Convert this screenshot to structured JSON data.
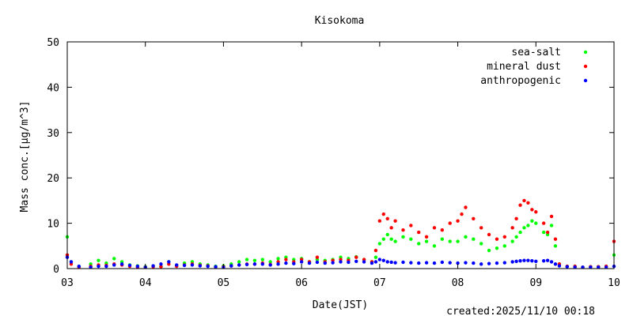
{
  "chart_data": {
    "type": "scatter",
    "title": "Kisokoma",
    "xlabel": "Date(JST)",
    "ylabel_main": "Mass conc.[",
    "ylabel_unit": "μg/m^3]",
    "x_ticks": [
      "03",
      "04",
      "05",
      "06",
      "07",
      "08",
      "09",
      "10"
    ],
    "xlim": [
      "03",
      "10"
    ],
    "ylim": [
      0,
      50
    ],
    "y_ticks": [
      0,
      10,
      20,
      30,
      40,
      50
    ],
    "grid": false,
    "legend_position": "top-right",
    "created": "created:2025/11/10 00:18",
    "series": [
      {
        "name": "sea-salt",
        "color": "#00ff00",
        "x": [
          3.0,
          3.05,
          3.15,
          3.3,
          3.4,
          3.5,
          3.6,
          3.7,
          3.8,
          3.9,
          4.0,
          4.1,
          4.2,
          4.3,
          4.4,
          4.5,
          4.6,
          4.7,
          4.8,
          4.9,
          5.0,
          5.1,
          5.2,
          5.3,
          5.4,
          5.5,
          5.6,
          5.7,
          5.8,
          5.9,
          6.0,
          6.1,
          6.2,
          6.3,
          6.4,
          6.5,
          6.6,
          6.7,
          6.8,
          6.9,
          6.95,
          7.0,
          7.05,
          7.1,
          7.15,
          7.2,
          7.3,
          7.4,
          7.5,
          7.6,
          7.7,
          7.8,
          7.9,
          8.0,
          8.1,
          8.2,
          8.3,
          8.4,
          8.5,
          8.6,
          8.7,
          8.75,
          8.8,
          8.85,
          8.9,
          8.95,
          9.0,
          9.1,
          9.15,
          9.2,
          9.25,
          9.3,
          9.4,
          9.5,
          9.6,
          9.7,
          9.8,
          9.9,
          10.0
        ],
        "y": [
          7.0,
          1.5,
          0.5,
          1.0,
          1.8,
          1.2,
          2.2,
          1.5,
          0.8,
          0.6,
          0.4,
          0.6,
          0.5,
          1.5,
          0.7,
          1.2,
          1.5,
          1.0,
          0.8,
          0.5,
          0.6,
          1.0,
          1.5,
          2.0,
          1.8,
          2.0,
          1.5,
          2.2,
          2.5,
          2.0,
          2.2,
          1.5,
          2.0,
          1.8,
          2.0,
          2.5,
          2.2,
          2.6,
          2.0,
          1.5,
          2.5,
          5.5,
          6.5,
          7.5,
          6.5,
          6.0,
          7.0,
          6.5,
          5.5,
          6.0,
          5.0,
          6.5,
          6.0,
          6.0,
          7.0,
          6.5,
          5.5,
          4.0,
          4.5,
          5.0,
          6.0,
          7.0,
          8.0,
          9.0,
          9.5,
          10.5,
          10.0,
          8.0,
          7.5,
          9.5,
          5.0,
          1.0,
          0.5,
          0.5,
          0.3,
          0.4,
          0.4,
          0.5,
          3.0
        ]
      },
      {
        "name": "mineral dust",
        "color": "#ff0000",
        "x": [
          3.0,
          3.05,
          3.15,
          3.3,
          3.4,
          3.5,
          3.6,
          3.7,
          3.8,
          3.9,
          4.0,
          4.1,
          4.2,
          4.3,
          4.4,
          4.5,
          4.6,
          4.7,
          4.8,
          4.9,
          5.0,
          5.1,
          5.2,
          5.3,
          5.4,
          5.5,
          5.6,
          5.7,
          5.8,
          5.9,
          6.0,
          6.1,
          6.2,
          6.3,
          6.4,
          6.5,
          6.6,
          6.7,
          6.8,
          6.9,
          6.95,
          7.0,
          7.05,
          7.1,
          7.15,
          7.2,
          7.3,
          7.4,
          7.5,
          7.6,
          7.7,
          7.8,
          7.9,
          8.0,
          8.05,
          8.1,
          8.2,
          8.3,
          8.4,
          8.5,
          8.6,
          8.7,
          8.75,
          8.8,
          8.85,
          8.9,
          8.95,
          9.0,
          9.1,
          9.15,
          9.2,
          9.25,
          9.3,
          9.4,
          9.5,
          9.6,
          9.7,
          9.8,
          9.9,
          10.0
        ],
        "y": [
          3.0,
          1.0,
          0.3,
          0.5,
          0.8,
          0.7,
          1.0,
          0.8,
          0.5,
          0.3,
          0.3,
          0.4,
          0.4,
          1.0,
          0.5,
          0.8,
          1.0,
          0.7,
          0.6,
          0.3,
          0.4,
          0.6,
          0.8,
          1.0,
          1.0,
          1.2,
          0.9,
          1.5,
          2.0,
          1.5,
          2.0,
          1.5,
          2.5,
          1.5,
          1.8,
          2.0,
          1.8,
          2.5,
          2.0,
          1.5,
          4.0,
          10.5,
          12.0,
          11.0,
          9.0,
          10.5,
          8.5,
          9.5,
          8.0,
          7.0,
          9.0,
          8.5,
          10.0,
          10.5,
          12.0,
          13.5,
          11.0,
          9.0,
          7.5,
          6.5,
          7.0,
          9.0,
          11.0,
          14.0,
          15.0,
          14.5,
          13.0,
          12.5,
          10.0,
          8.0,
          11.5,
          6.5,
          1.0,
          0.5,
          0.5,
          0.3,
          0.4,
          0.4,
          0.5,
          6.0
        ]
      },
      {
        "name": "anthropogenic",
        "color": "#0000ff",
        "x": [
          3.0,
          3.05,
          3.15,
          3.3,
          3.4,
          3.5,
          3.6,
          3.7,
          3.8,
          3.9,
          4.0,
          4.1,
          4.2,
          4.3,
          4.4,
          4.5,
          4.6,
          4.7,
          4.8,
          4.9,
          5.0,
          5.1,
          5.2,
          5.3,
          5.4,
          5.5,
          5.6,
          5.7,
          5.8,
          5.9,
          6.0,
          6.1,
          6.2,
          6.3,
          6.4,
          6.5,
          6.6,
          6.7,
          6.8,
          6.9,
          6.95,
          7.0,
          7.05,
          7.1,
          7.15,
          7.2,
          7.3,
          7.4,
          7.5,
          7.6,
          7.7,
          7.8,
          7.9,
          8.0,
          8.1,
          8.2,
          8.3,
          8.4,
          8.5,
          8.6,
          8.7,
          8.75,
          8.8,
          8.85,
          8.9,
          8.95,
          9.0,
          9.1,
          9.15,
          9.2,
          9.25,
          9.3,
          9.4,
          9.5,
          9.6,
          9.7,
          9.8,
          9.9,
          10.0
        ],
        "y": [
          2.5,
          1.5,
          0.5,
          0.3,
          0.5,
          0.5,
          0.8,
          1.0,
          0.7,
          0.5,
          0.3,
          0.6,
          1.0,
          1.5,
          0.8,
          0.7,
          0.8,
          0.6,
          0.5,
          0.4,
          0.3,
          0.6,
          0.8,
          0.9,
          1.0,
          1.0,
          0.8,
          1.0,
          1.2,
          1.1,
          1.5,
          1.2,
          1.4,
          1.2,
          1.3,
          1.5,
          1.4,
          1.6,
          1.5,
          1.2,
          1.5,
          2.0,
          1.8,
          1.5,
          1.4,
          1.3,
          1.4,
          1.3,
          1.2,
          1.3,
          1.2,
          1.4,
          1.3,
          1.2,
          1.3,
          1.2,
          1.0,
          1.1,
          1.2,
          1.3,
          1.5,
          1.6,
          1.7,
          1.8,
          1.8,
          1.7,
          1.6,
          1.7,
          1.8,
          1.5,
          1.0,
          0.6,
          0.4,
          0.3,
          0.3,
          0.3,
          0.3,
          0.3,
          0.5
        ]
      }
    ]
  }
}
